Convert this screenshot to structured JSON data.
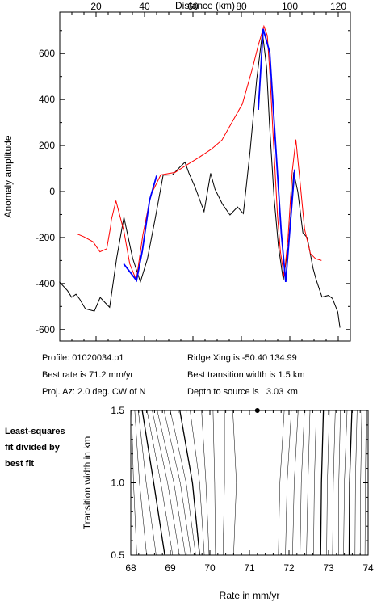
{
  "chart_data": [
    {
      "type": "line",
      "xlabel": "Distance (km)",
      "ylabel": "Anomaly amplitude",
      "xlim": [
        5,
        125
      ],
      "ylim": [
        -650,
        780
      ],
      "x_ticks": [
        20,
        40,
        60,
        80,
        100,
        120
      ],
      "y_ticks": [
        -600,
        -400,
        -200,
        0,
        200,
        400,
        600
      ],
      "grid": false,
      "colors": {
        "observed": "#000000",
        "model": "#ff0000",
        "fit_window": "#0000ff"
      },
      "series": [
        {
          "color": "#000000",
          "x": [
            4.8,
            8.2,
            9.9,
            11.7,
            13.3,
            15.6,
            19.3,
            21.7,
            25.6,
            28.5,
            31.5,
            35.1,
            38.3,
            41.2,
            44.4,
            47.7,
            51.5,
            54.5,
            56.7,
            58.3,
            60.8,
            64.6,
            67.3,
            69.1,
            72.2,
            75.3,
            78.4,
            80.8,
            83.6,
            86.3,
            88.7,
            90.4,
            91.6,
            93.5,
            95.3,
            97.3,
            99.5,
            101.6,
            103.3,
            105.4,
            107.2,
            109.6,
            110.9,
            113.3,
            115.9,
            117.6,
            119.8,
            120.7
          ],
          "y": [
            -392,
            -431,
            -460,
            -447,
            -469,
            -510,
            -520,
            -461,
            -504,
            -290,
            -112,
            -290,
            -393,
            -293,
            -118,
            71,
            72,
            105,
            128,
            81,
            21,
            -87,
            79,
            10,
            -55,
            -102,
            -67,
            -96,
            176,
            485,
            691,
            541,
            296,
            -26,
            -238,
            -385,
            -228,
            83,
            -1,
            -180,
            -201,
            -334,
            -384,
            -459,
            -452,
            -465,
            -524,
            -592
          ]
        },
        {
          "color": "#ff0000",
          "x": [
            12.3,
            15.0,
            18.8,
            21.6,
            24.4,
            26.0,
            26.3,
            28.2,
            31.5,
            33.9,
            36.6,
            39.3,
            42.6,
            46.7,
            52.6,
            57.2,
            62.3,
            67.6,
            72.0,
            76.7,
            80.4,
            84.7,
            86.9,
            89.3,
            90.7,
            91.8,
            93.2,
            94.9,
            96.1,
            97.6,
            99.2,
            101.0,
            102.5,
            104.2,
            106.1,
            108.5,
            110.6,
            113.1
          ],
          "y": [
            -185,
            -197,
            -219,
            -262,
            -249,
            -153,
            -124,
            -40,
            -173,
            -314,
            -385,
            -189,
            -15,
            72,
            83,
            114,
            147,
            184,
            224,
            312,
            380,
            540,
            633,
            719,
            678,
            508,
            226,
            -102,
            -260,
            -370,
            -212,
            88,
            226,
            45,
            -164,
            -270,
            -292,
            -300
          ]
        },
        {
          "color": "#0000ff",
          "x": [
            31.4,
            36.7,
            39.1,
            42.1,
            45.0,
            87.0,
            89.0,
            91.7,
            94.0,
            96.5,
            98.3,
            102.0
          ],
          "y": [
            -314,
            -387,
            -258,
            -38,
            69,
            355,
            707,
            606,
            227,
            -183,
            -393,
            96
          ]
        }
      ]
    },
    {
      "type": "contour",
      "xlabel": "Rate in mm/yr",
      "ylabel": "Transition width in km",
      "xlim": [
        68,
        74
      ],
      "ylim": [
        0.5,
        1.5
      ],
      "x_ticks": [
        68,
        69,
        70,
        71,
        72,
        73,
        74
      ],
      "y_ticks": [
        0.5,
        1.0,
        1.5
      ],
      "best_fit": {
        "x": 71.2,
        "y": 1.5
      },
      "contours": [
        {
          "x": [
            68.02,
            68.07,
            68.15
          ],
          "y": [
            1.5,
            1.0,
            0.5
          ],
          "style": "thin"
        },
        {
          "x": [
            68.1,
            68.22,
            68.4
          ],
          "y": [
            1.5,
            1.0,
            0.5
          ],
          "style": "thin"
        },
        {
          "x": [
            68.19,
            68.39,
            68.64
          ],
          "y": [
            1.5,
            1.0,
            0.5
          ],
          "style": "thin"
        },
        {
          "x": [
            68.29,
            68.58,
            68.86
          ],
          "y": [
            1.5,
            1.0,
            0.5
          ],
          "style": "thick"
        },
        {
          "x": [
            68.41,
            68.76,
            69.06
          ],
          "y": [
            1.5,
            1.0,
            0.5
          ],
          "style": "thin"
        },
        {
          "x": [
            68.54,
            68.93,
            69.23
          ],
          "y": [
            1.5,
            1.0,
            0.5
          ],
          "style": "thin"
        },
        {
          "x": [
            68.67,
            69.09,
            69.38
          ],
          "y": [
            1.5,
            1.0,
            0.5
          ],
          "style": "thin"
        },
        {
          "x": [
            68.84,
            69.25,
            69.52
          ],
          "y": [
            1.5,
            1.0,
            0.5
          ],
          "style": "thin"
        },
        {
          "x": [
            69.0,
            69.4,
            69.64
          ],
          "y": [
            1.5,
            1.0,
            0.5
          ],
          "style": "thin"
        },
        {
          "x": [
            69.24,
            69.56,
            69.74
          ],
          "y": [
            1.5,
            1.0,
            0.5
          ],
          "style": "thick"
        },
        {
          "x": [
            69.5,
            69.74,
            69.86
          ],
          "y": [
            1.5,
            1.0,
            0.5
          ],
          "style": "thin"
        },
        {
          "x": [
            69.79,
            69.9,
            69.98
          ],
          "y": [
            1.5,
            1.0,
            0.5
          ],
          "style": "thin"
        },
        {
          "x": [
            70.08,
            70.12,
            70.14
          ],
          "y": [
            1.5,
            1.0,
            0.5
          ],
          "style": "thin"
        },
        {
          "x": [
            70.37,
            70.37,
            70.33
          ],
          "y": [
            1.5,
            1.0,
            0.5
          ],
          "style": "thin"
        },
        {
          "x": [
            70.58,
            70.67,
            70.6
          ],
          "y": [
            1.5,
            1.0,
            0.5
          ],
          "style": "thin"
        },
        {
          "x": [
            71.88,
            71.77,
            71.73
          ],
          "y": [
            1.5,
            1.0,
            0.5
          ],
          "style": "thin"
        },
        {
          "x": [
            72.06,
            71.95,
            71.91
          ],
          "y": [
            1.5,
            1.0,
            0.5
          ],
          "style": "thin"
        },
        {
          "x": [
            72.23,
            72.13,
            72.09
          ],
          "y": [
            1.5,
            1.0,
            0.5
          ],
          "style": "thin"
        },
        {
          "x": [
            72.39,
            72.31,
            72.28
          ],
          "y": [
            1.5,
            1.0,
            0.5
          ],
          "style": "thin"
        },
        {
          "x": [
            72.53,
            72.48,
            72.44
          ],
          "y": [
            1.5,
            1.0,
            0.5
          ],
          "style": "thin"
        },
        {
          "x": [
            72.69,
            72.64,
            72.62
          ],
          "y": [
            1.5,
            1.0,
            0.5
          ],
          "style": "thin"
        },
        {
          "x": [
            72.87,
            72.82,
            72.8
          ],
          "y": [
            1.5,
            1.0,
            0.5
          ],
          "style": "thick"
        },
        {
          "x": [
            73.02,
            72.97,
            72.95
          ],
          "y": [
            1.5,
            1.0,
            0.5
          ],
          "style": "thin"
        },
        {
          "x": [
            73.17,
            73.12,
            73.1
          ],
          "y": [
            1.5,
            1.0,
            0.5
          ],
          "style": "thin"
        },
        {
          "x": [
            73.3,
            73.26,
            73.26
          ],
          "y": [
            1.5,
            1.0,
            0.5
          ],
          "style": "thin"
        },
        {
          "x": [
            73.47,
            73.4,
            73.38
          ],
          "y": [
            1.5,
            1.0,
            0.5
          ],
          "style": "thin"
        },
        {
          "x": [
            73.59,
            73.53,
            73.52
          ],
          "y": [
            1.5,
            1.0,
            0.5
          ],
          "style": "thick"
        },
        {
          "x": [
            73.72,
            73.68,
            73.67
          ],
          "y": [
            1.5,
            1.0,
            0.5
          ],
          "style": "thin"
        },
        {
          "x": [
            73.84,
            73.81,
            73.8
          ],
          "y": [
            1.5,
            1.0,
            0.5
          ],
          "style": "thin"
        },
        {
          "x": [
            73.95,
            73.93,
            73.92
          ],
          "y": [
            1.5,
            1.0,
            0.5
          ],
          "style": "thin"
        }
      ]
    }
  ],
  "info": {
    "profile": "Profile: 01020034.p1",
    "best_rate": "Best rate is 71.2 mm/yr",
    "proj_az": "Proj. Az: 2.0 deg. CW of N",
    "ridge_xing": "Ridge Xing is -50.40 134.99",
    "best_transition": "Best transition width is 1.5 km",
    "depth": "Depth to source is   3.03 km"
  },
  "side_label": {
    "line1": "Least-squares",
    "line2": "fit divided by",
    "line3": "best fit"
  }
}
